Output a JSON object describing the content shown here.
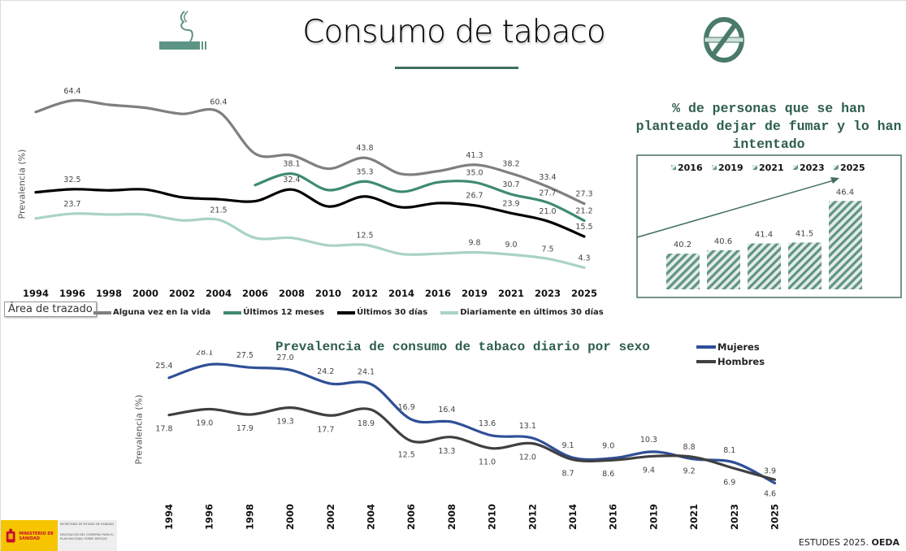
{
  "header": {
    "title": "Consumo de tabaco",
    "icons": [
      "cigarette-icon",
      "no-smoking-icon"
    ]
  },
  "colors": {
    "accent": "#3f6f5f",
    "alguna_vez": "#7f7f7f",
    "ultimos_12": "#3e8a74",
    "ultimos_30": "#000000",
    "diariamente": "#a9d3c4",
    "mujeres": "#2f4f96",
    "hombres": "#404040",
    "bar_hatch": "#5e9484"
  },
  "tooltip": "Área de trazado",
  "footer": {
    "source_prefix": "ESTUDES 2025.",
    "source_bold": "OEDA",
    "logo_text": [
      "MINISTERIO DE SANIDAD",
      "SECRETARÍA DE ESTADO DE SANIDAD",
      "DELEGACIÓN DEL GOBIERNO PARA EL PLAN NACIONAL SOBRE DROGAS"
    ]
  },
  "chart_data": [
    {
      "type": "line",
      "title": "",
      "ylabel": "Prevalencia (%)",
      "xlabel": "",
      "categories": [
        "1994",
        "1996",
        "1998",
        "2000",
        "2002",
        "2004",
        "2006",
        "2008",
        "2010",
        "2012",
        "2014",
        "2016",
        "2019",
        "2021",
        "2023",
        "2025"
      ],
      "legend_position": "bottom",
      "grid": false,
      "series": [
        {
          "name": "Alguna vez en la vida",
          "color_key": "alguna_vez",
          "values": [
            60.3,
            64.4,
            62.9,
            61.8,
            59.6,
            60.4,
            45.3,
            44.7,
            39.9,
            43.8,
            38.0,
            39.0,
            41.3,
            38.2,
            33.4,
            27.3
          ],
          "data_labels": [
            null,
            "64.4",
            null,
            null,
            null,
            "60.4",
            null,
            null,
            null,
            "43.8",
            null,
            null,
            "41.3",
            "38.2",
            "33.4",
            "27.3"
          ]
        },
        {
          "name": "Últimos 12 meses",
          "color_key": "ultimos_12",
          "values": [
            null,
            null,
            null,
            null,
            null,
            null,
            34.0,
            38.1,
            32.2,
            35.3,
            31.6,
            35.0,
            35.0,
            30.7,
            27.7,
            21.2
          ],
          "data_labels": [
            null,
            null,
            null,
            null,
            null,
            null,
            null,
            "38.1",
            null,
            "35.3",
            null,
            null,
            "35.0",
            "30.7",
            "27.7",
            "21.2"
          ]
        },
        {
          "name": "Últimos 30 días",
          "color_key": "ultimos_30",
          "values": [
            31.4,
            32.5,
            32.1,
            32.4,
            29.6,
            28.9,
            28.2,
            32.4,
            26.3,
            29.9,
            26.0,
            27.5,
            26.7,
            23.9,
            21.0,
            15.5
          ],
          "data_labels": [
            null,
            "32.5",
            null,
            null,
            null,
            null,
            null,
            "32.4",
            null,
            null,
            null,
            null,
            "26.7",
            "23.9",
            "21.0",
            "15.5"
          ]
        },
        {
          "name": "Diariamente en últimos 30 días",
          "color_key": "diariamente",
          "values": [
            22.0,
            23.7,
            23.4,
            23.4,
            21.3,
            21.5,
            15.0,
            15.0,
            12.3,
            12.5,
            9.2,
            9.3,
            9.8,
            9.0,
            7.5,
            4.3
          ],
          "data_labels": [
            null,
            "23.7",
            null,
            null,
            null,
            "21.5",
            null,
            null,
            null,
            "12.5",
            null,
            null,
            "9.8",
            "9.0",
            "7.5",
            "4.3"
          ]
        }
      ]
    },
    {
      "type": "bar",
      "title": "% de personas que se han planteado dejar de fumar y lo han intentado",
      "categories": [
        "2016",
        "2019",
        "2021",
        "2023",
        "2025"
      ],
      "values": [
        40.2,
        40.6,
        41.4,
        41.5,
        46.4
      ],
      "ylim": [
        36,
        47
      ],
      "legend_position": "top",
      "annotation": "upward trend arrow"
    },
    {
      "type": "line",
      "title": "Prevalencia de consumo de tabaco diario por sexo",
      "ylabel": "Prevalencia (%)",
      "xlabel": "",
      "categories": [
        "1994",
        "1996",
        "1998",
        "2000",
        "2002",
        "2004",
        "2006",
        "2008",
        "2010",
        "2012",
        "2014",
        "2016",
        "2019",
        "2021",
        "2023",
        "2025"
      ],
      "legend_position": "top-right",
      "grid": false,
      "series": [
        {
          "name": "Mujeres",
          "color_key": "mujeres",
          "values": [
            25.4,
            28.1,
            27.5,
            27.0,
            24.2,
            24.1,
            16.9,
            16.4,
            13.6,
            13.1,
            9.1,
            9.0,
            10.3,
            8.8,
            8.1,
            3.9
          ]
        },
        {
          "name": "Hombres",
          "color_key": "hombres",
          "values": [
            17.8,
            19.0,
            17.9,
            19.3,
            17.7,
            18.9,
            12.5,
            13.3,
            11.0,
            12.0,
            8.7,
            8.6,
            9.4,
            9.2,
            6.9,
            4.6
          ]
        }
      ]
    }
  ]
}
